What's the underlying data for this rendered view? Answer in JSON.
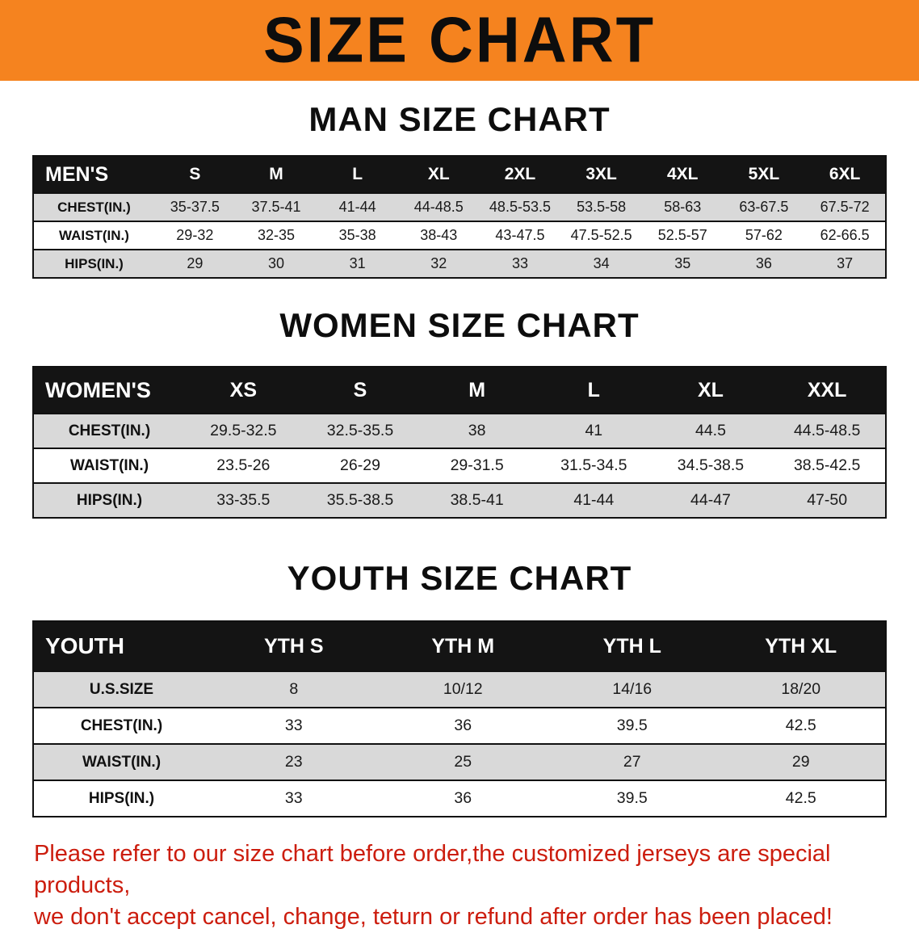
{
  "banner": {
    "title": "SIZE CHART",
    "background_color": "#F5831F",
    "text_color": "#0D0D0D"
  },
  "sections": [
    {
      "heading": "MAN SIZE CHART",
      "table": {
        "header": [
          "MEN'S",
          "S",
          "M",
          "L",
          "XL",
          "2XL",
          "3XL",
          "4XL",
          "5XL",
          "6XL"
        ],
        "rows": [
          [
            "CHEST(IN.)",
            "35-37.5",
            "37.5-41",
            "41-44",
            "44-48.5",
            "48.5-53.5",
            "53.5-58",
            "58-63",
            "63-67.5",
            "67.5-72"
          ],
          [
            "WAIST(IN.)",
            "29-32",
            "32-35",
            "35-38",
            "38-43",
            "43-47.5",
            "47.5-52.5",
            "52.5-57",
            "57-62",
            "62-66.5"
          ],
          [
            "HIPS(IN.)",
            "29",
            "30",
            "31",
            "32",
            "33",
            "34",
            "35",
            "36",
            "37"
          ]
        ]
      }
    },
    {
      "heading": "WOMEN SIZE CHART",
      "table": {
        "header": [
          "WOMEN'S",
          "XS",
          "S",
          "M",
          "L",
          "XL",
          "XXL"
        ],
        "rows": [
          [
            "CHEST(IN.)",
            "29.5-32.5",
            "32.5-35.5",
            "38",
            "41",
            "44.5",
            "44.5-48.5"
          ],
          [
            "WAIST(IN.)",
            "23.5-26",
            "26-29",
            "29-31.5",
            "31.5-34.5",
            "34.5-38.5",
            "38.5-42.5"
          ],
          [
            "HIPS(IN.)",
            "33-35.5",
            "35.5-38.5",
            "38.5-41",
            "41-44",
            "44-47",
            "47-50"
          ]
        ]
      }
    },
    {
      "heading": "YOUTH SIZE CHART",
      "table": {
        "header": [
          "YOUTH",
          "YTH S",
          "YTH M",
          "YTH L",
          "YTH XL"
        ],
        "rows": [
          [
            "U.S.SIZE",
            "8",
            "10/12",
            "14/16",
            "18/20"
          ],
          [
            "CHEST(IN.)",
            "33",
            "36",
            "39.5",
            "42.5"
          ],
          [
            "WAIST(IN.)",
            "23",
            "25",
            "27",
            "29"
          ],
          [
            "HIPS(IN.)",
            "33",
            "36",
            "39.5",
            "42.5"
          ]
        ]
      }
    }
  ],
  "footer": {
    "line1": "Please refer to our size chart before order,the customized jerseys are special products,",
    "line2": "we don't accept cancel, change, teturn or refund after order has been placed!",
    "text_color": "#CC1D0E"
  },
  "colors": {
    "table_header_bg": "#141414",
    "table_header_text": "#FFFFFF",
    "stripe_row_bg": "#D9D9D9",
    "table_border": "#111111"
  }
}
